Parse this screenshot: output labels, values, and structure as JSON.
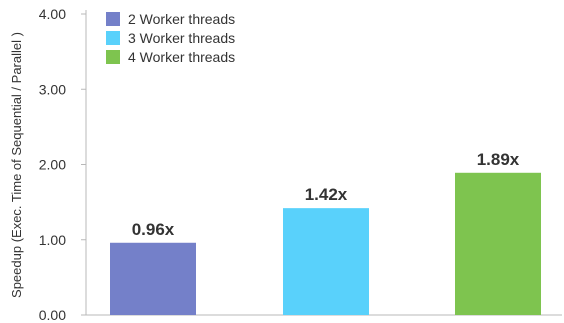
{
  "chart_data": {
    "type": "bar",
    "title": "",
    "xlabel": "",
    "ylabel": "Speedup (Exec. Time of Sequential / Parallel )",
    "ylim": [
      0,
      4
    ],
    "yticks": [
      0,
      1,
      2,
      3,
      4
    ],
    "ytick_labels": [
      "0.00",
      "1.00",
      "2.00",
      "3.00",
      "4.00"
    ],
    "grid": false,
    "legend_position": "top-left",
    "series": [
      {
        "name": "2 Worker threads",
        "value": 0.96,
        "label": "0.96x",
        "color": "#7480c9"
      },
      {
        "name": "3 Worker threads",
        "value": 1.42,
        "label": "1.42x",
        "color": "#59d1fb"
      },
      {
        "name": "4 Worker threads",
        "value": 1.89,
        "label": "1.89x",
        "color": "#7ec44f"
      }
    ]
  }
}
